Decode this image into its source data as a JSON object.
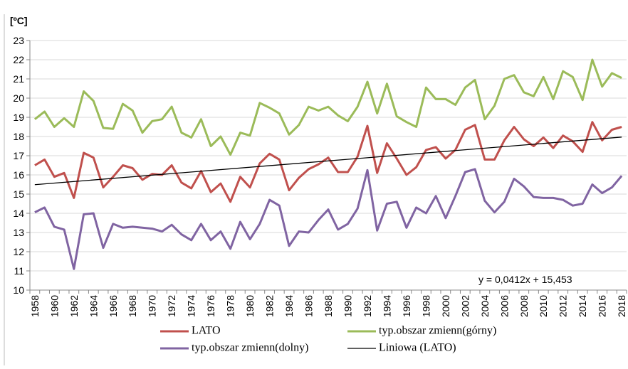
{
  "chart_data": {
    "type": "line",
    "y_axis_label": "[ºC]",
    "categories": [
      "1958",
      null,
      "1960",
      null,
      "1962",
      null,
      "1964",
      null,
      "1966",
      null,
      "1968",
      null,
      "1970",
      null,
      "1972",
      null,
      "1974",
      null,
      "1976",
      null,
      "1978",
      null,
      "1980",
      null,
      "1982",
      null,
      "1984",
      null,
      "1986",
      null,
      "1988",
      null,
      "1990",
      null,
      "1992",
      null,
      "1994",
      null,
      "1996",
      null,
      "1998",
      null,
      "2000",
      null,
      "2002",
      null,
      "2004",
      null,
      "2006",
      null,
      "2008",
      null,
      "2010",
      null,
      "2012",
      null,
      "2014",
      null,
      "2016",
      null,
      "2018"
    ],
    "series": [
      {
        "name": "LATO",
        "color": "#c0504d",
        "values": [
          16.5,
          16.8,
          15.9,
          16.1,
          14.8,
          17.15,
          16.9,
          15.35,
          15.9,
          16.5,
          16.35,
          15.75,
          16.05,
          16.0,
          16.5,
          15.6,
          15.3,
          16.2,
          15.1,
          15.55,
          14.6,
          15.9,
          15.35,
          16.6,
          17.1,
          16.8,
          15.2,
          15.85,
          16.3,
          16.55,
          16.9,
          16.15,
          16.15,
          16.95,
          18.55,
          16.1,
          17.65,
          16.85,
          16.0,
          16.4,
          17.3,
          17.45,
          16.85,
          17.3,
          18.35,
          18.6,
          16.8,
          16.8,
          17.8,
          18.5,
          17.85,
          17.5,
          17.95,
          17.4,
          18.05,
          17.75,
          17.2,
          18.75,
          17.8,
          18.35,
          18.5
        ]
      },
      {
        "name": "typ.obszar zmienn(górny)",
        "color": "#9bbb59",
        "values": [
          18.9,
          19.3,
          18.5,
          18.95,
          18.5,
          20.35,
          19.85,
          18.45,
          18.4,
          19.7,
          19.35,
          18.2,
          18.8,
          18.9,
          19.55,
          18.2,
          17.95,
          18.9,
          17.5,
          18.0,
          17.05,
          18.2,
          18.05,
          19.75,
          19.5,
          19.2,
          18.1,
          18.6,
          19.55,
          19.35,
          19.55,
          19.1,
          18.8,
          19.55,
          20.85,
          19.2,
          20.75,
          19.05,
          18.75,
          18.5,
          20.55,
          19.95,
          19.95,
          19.65,
          20.55,
          20.95,
          18.9,
          19.6,
          21.0,
          21.2,
          20.3,
          20.1,
          21.1,
          19.95,
          21.4,
          21.1,
          19.9,
          22.0,
          20.6,
          21.3,
          21.05
        ]
      },
      {
        "name": "typ.obszar zmienn(dolny)",
        "color": "#8064a2",
        "values": [
          14.05,
          14.3,
          13.3,
          13.15,
          11.1,
          13.95,
          14.0,
          12.2,
          13.45,
          13.25,
          13.3,
          13.25,
          13.2,
          13.05,
          13.4,
          12.9,
          12.6,
          13.45,
          12.6,
          13.05,
          12.15,
          13.55,
          12.65,
          13.45,
          14.7,
          14.4,
          12.3,
          13.05,
          13.0,
          13.65,
          14.2,
          13.15,
          13.45,
          14.25,
          16.25,
          13.1,
          14.5,
          14.6,
          13.25,
          14.3,
          14.0,
          14.9,
          13.75,
          14.9,
          16.15,
          16.3,
          14.65,
          14.05,
          14.6,
          15.8,
          15.4,
          14.85,
          14.8,
          14.8,
          14.7,
          14.4,
          14.5,
          15.5,
          15.05,
          15.35,
          15.95
        ]
      }
    ],
    "trendline": {
      "name": "Liniowa (LATO)",
      "color": "#000000",
      "values": [
        15.49,
        17.97
      ],
      "equation": "y = 0,0412x + 15,453"
    },
    "ylim": [
      10,
      23
    ],
    "yticks": [
      10,
      11,
      12,
      13,
      14,
      15,
      16,
      17,
      18,
      19,
      20,
      21,
      22,
      23
    ],
    "grid": true
  }
}
